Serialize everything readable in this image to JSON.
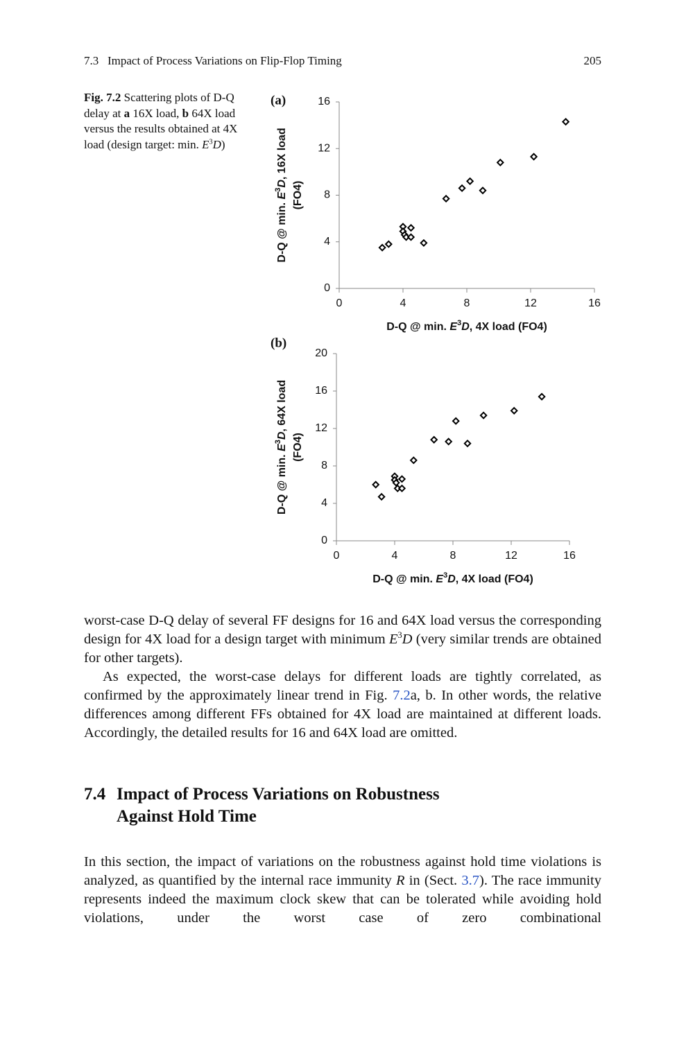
{
  "header": {
    "section": "7.3",
    "title": "Impact of Process Variations on Flip-Flop Timing",
    "page": "205"
  },
  "caption": [
    "Fig. 7.2",
    " Scattering plots of D-Q delay at ",
    "a",
    " 16X load, ",
    "b",
    " 64X load versus the results obtained at 4X load (design target: min. ",
    "E",
    "3",
    "D",
    ")"
  ],
  "chart_data": [
    {
      "type": "scatter",
      "panel": "(a)",
      "x_label": [
        "D-Q @ min. ",
        "E",
        "3",
        "D",
        ", 4X load (FO4)"
      ],
      "y_label": [
        "D-Q @ min. ",
        "E",
        "3",
        "D",
        ", 16X load",
        "(FO4)"
      ],
      "xlim": [
        0,
        16
      ],
      "xticks": [
        0,
        4,
        8,
        12,
        16
      ],
      "ylim": [
        0,
        16
      ],
      "yticks": [
        0,
        4,
        8,
        12,
        16
      ],
      "marker": "diamond",
      "color": "#000000",
      "x": [
        2.7,
        3.1,
        4.0,
        4.0,
        4.1,
        4.2,
        4.5,
        4.5,
        5.3,
        6.7,
        7.7,
        8.2,
        9.0,
        10.1,
        12.2,
        14.2
      ],
      "values": [
        3.5,
        3.8,
        5.3,
        4.9,
        4.6,
        4.4,
        5.2,
        4.4,
        3.9,
        7.7,
        8.6,
        9.2,
        8.4,
        10.8,
        11.3,
        14.3
      ]
    },
    {
      "type": "scatter",
      "panel": "(b)",
      "x_label": [
        "D-Q @ min. ",
        "E",
        "3",
        "D",
        ", 4X load (FO4)"
      ],
      "y_label": [
        "D-Q @ min. ",
        "E",
        "3",
        "D",
        ", 64X load",
        "(FO4)"
      ],
      "xlim": [
        0,
        16
      ],
      "xticks": [
        0,
        4,
        8,
        12,
        16
      ],
      "ylim": [
        0,
        20
      ],
      "yticks": [
        0,
        4,
        8,
        12,
        16,
        20
      ],
      "marker": "diamond",
      "color": "#000000",
      "x": [
        2.7,
        3.1,
        4.0,
        4.0,
        4.1,
        4.2,
        4.5,
        4.5,
        5.3,
        6.7,
        7.7,
        8.2,
        9.0,
        10.1,
        12.2,
        14.1
      ],
      "values": [
        6.0,
        4.7,
        6.9,
        6.5,
        6.2,
        5.6,
        6.6,
        5.6,
        8.6,
        10.8,
        10.6,
        12.8,
        10.4,
        13.4,
        13.9,
        15.4
      ]
    }
  ],
  "paragraphs": [
    [
      "worst-case D-Q delay of several FF designs for 16 and 64X load versus the corresponding design for 4X load for a design target with minimum ",
      "E",
      "3",
      "D",
      " (very similar trends are obtained for other targets)."
    ],
    [
      "As expected, the worst-case delays for different loads are tightly correlated, as confirmed by the approximately linear trend in Fig. ",
      "7.2",
      "a, b. In other words, the relative differences among different FFs obtained for 4X load are maintained at different loads. Accordingly, the detailed results for 16 and 64X load are omitted."
    ]
  ],
  "heading": {
    "number": "7.4",
    "title": "Impact of Process Variations on Robustness Against Hold Time"
  },
  "paragraph3": [
    "In this section, the impact of variations on the robustness against hold time violations is analyzed, as quantified by the internal race immunity ",
    "R",
    " in (Sect. ",
    "3.7",
    "). The race immunity represents indeed the maximum clock skew that can be tolerated while avoiding hold violations, under the worst case of zero combinational"
  ]
}
